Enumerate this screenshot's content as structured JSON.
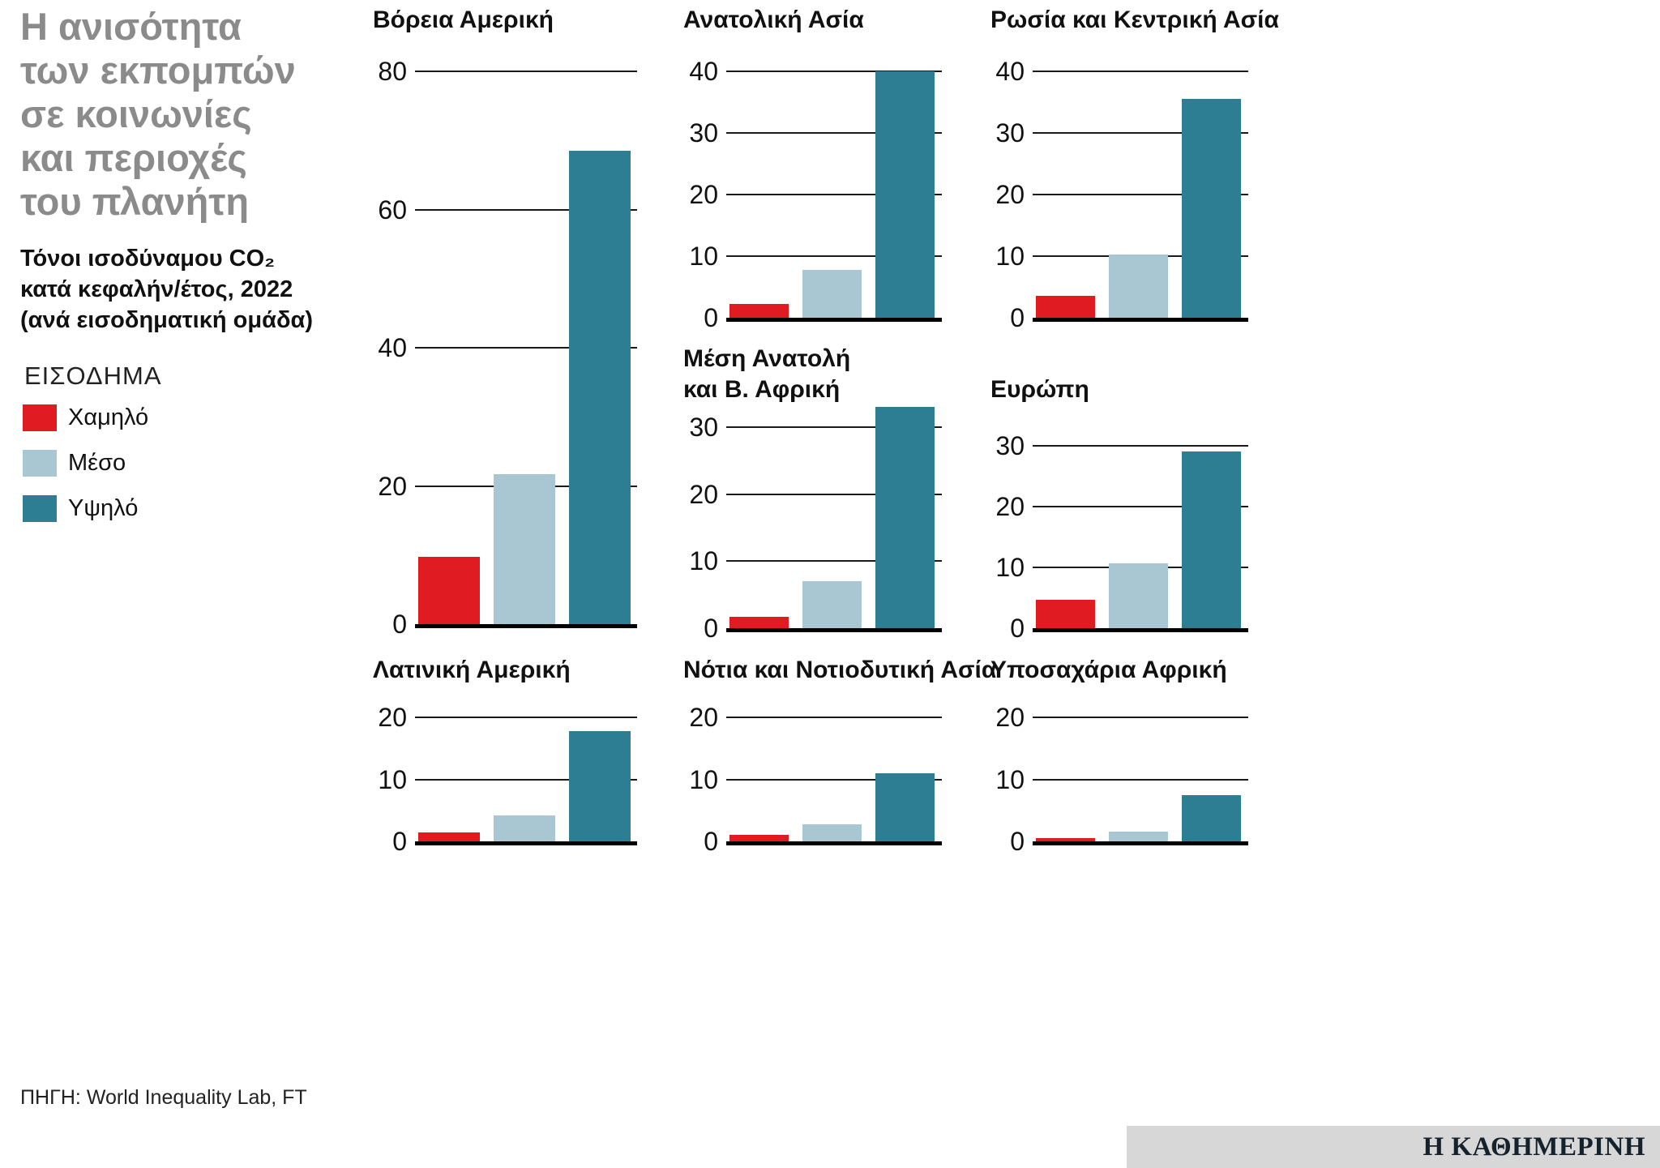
{
  "header": {
    "title": "Η ανισότητα\nτων εκπομπών\nσε κοινωνίες\nκαι περιοχές\nτου πλανήτη",
    "subtitle": "Τόνοι ισοδύναμου CO₂\nκατά κεφαλήν/έτος, 2022\n(ανά εισοδηματική ομάδα)"
  },
  "legend": {
    "title": "ΕΙΣΟΔΗΜΑ",
    "items": [
      {
        "label": "Χαμηλό",
        "color": "#e01b22"
      },
      {
        "label": "Μέσο",
        "color": "#a9c7d2"
      },
      {
        "label": "Υψηλό",
        "color": "#2d7e92"
      }
    ]
  },
  "chart_data": [
    {
      "type": "bar",
      "title": "Βόρεια Αμερική",
      "categories": [
        "Χαμηλό",
        "Μέσο",
        "Υψηλό"
      ],
      "values": [
        9.7,
        21.7,
        68.5
      ],
      "ylim": [
        0,
        80
      ],
      "yticks": [
        0,
        20,
        40,
        60,
        80
      ],
      "xlabel": "",
      "ylabel": "",
      "grid": true
    },
    {
      "type": "bar",
      "title": "Ανατολική Ασία",
      "categories": [
        "Χαμηλό",
        "Μέσο",
        "Υψηλό"
      ],
      "values": [
        2.2,
        7.7,
        40
      ],
      "ylim": [
        0,
        40
      ],
      "yticks": [
        0,
        10,
        20,
        30,
        40
      ],
      "xlabel": "",
      "ylabel": "",
      "grid": true
    },
    {
      "type": "bar",
      "title": "Ρωσία και Κεντρική Ασία",
      "categories": [
        "Χαμηλό",
        "Μέσο",
        "Υψηλό"
      ],
      "values": [
        3.6,
        10.2,
        35.5
      ],
      "ylim": [
        0,
        40
      ],
      "yticks": [
        0,
        10,
        20,
        30,
        40
      ],
      "xlabel": "",
      "ylabel": "",
      "grid": true
    },
    {
      "type": "bar",
      "title": "Μέση Ανατολή\nκαι Β. Αφρική",
      "categories": [
        "Χαμηλό",
        "Μέσο",
        "Υψηλό"
      ],
      "values": [
        1.7,
        7.0,
        33.0
      ],
      "ylim": [
        0,
        34
      ],
      "yticks": [
        0,
        10,
        20,
        30
      ],
      "xlabel": "",
      "ylabel": "",
      "grid": true
    },
    {
      "type": "bar",
      "title": "Ευρώπη",
      "categories": [
        "Χαμηλό",
        "Μέσο",
        "Υψηλό"
      ],
      "values": [
        4.6,
        10.6,
        29.0
      ],
      "ylim": [
        0,
        30
      ],
      "yticks": [
        0,
        10,
        20,
        30
      ],
      "xlabel": "",
      "ylabel": "",
      "grid": true
    },
    {
      "type": "bar",
      "title": "Λατινική Αμερική",
      "categories": [
        "Χαμηλό",
        "Μέσο",
        "Υψηλό"
      ],
      "values": [
        1.5,
        4.2,
        17.8
      ],
      "ylim": [
        0,
        20
      ],
      "yticks": [
        0,
        10,
        20
      ],
      "xlabel": "",
      "ylabel": "",
      "grid": true
    },
    {
      "type": "bar",
      "title": "Νότια και Νοτιοδυτική Ασία",
      "categories": [
        "Χαμηλό",
        "Μέσο",
        "Υψηλό"
      ],
      "values": [
        1.1,
        2.7,
        11.0
      ],
      "ylim": [
        0,
        20
      ],
      "yticks": [
        0,
        10,
        20
      ],
      "xlabel": "",
      "ylabel": "",
      "grid": true
    },
    {
      "type": "bar",
      "title": "Υποσαχάρια Αφρική",
      "categories": [
        "Χαμηλό",
        "Μέσο",
        "Υψηλό"
      ],
      "values": [
        0.5,
        1.6,
        7.4
      ],
      "ylim": [
        0,
        20
      ],
      "yticks": [
        0,
        10,
        20
      ],
      "xlabel": "",
      "ylabel": "",
      "grid": true
    }
  ],
  "footer": {
    "source": "ΠΗΓΗ: World Inequality Lab, FT",
    "logo": "Η ΚΑΘΗΜΕΡΙΝΗ"
  },
  "colors": {
    "low": "#e01b22",
    "mid": "#a9c7d2",
    "high": "#2d7e92",
    "title_gray": "#8b8b8b",
    "axis": "#000000",
    "footer_bar": "#d7d7d7"
  }
}
